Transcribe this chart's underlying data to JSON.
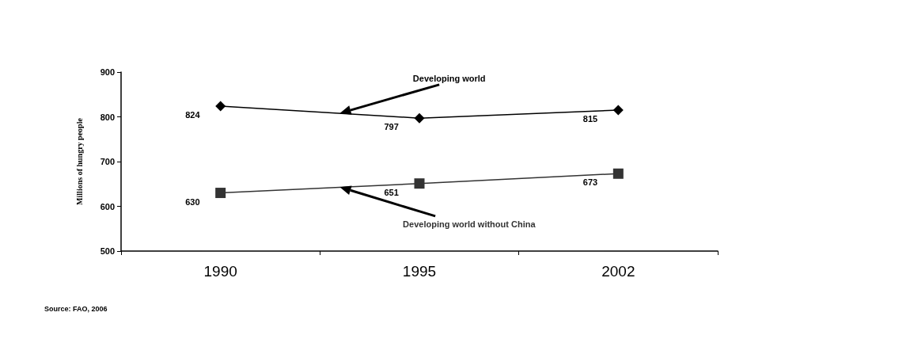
{
  "chart_data": {
    "type": "line",
    "ylabel": "Millions of hungry people",
    "categories": [
      "1990",
      "1995",
      "2002"
    ],
    "ylim": [
      500,
      900
    ],
    "yticks": [
      500,
      600,
      700,
      800,
      900
    ],
    "series": [
      {
        "name": "Developing world",
        "color": "#000000",
        "marker": "diamond",
        "values": [
          824,
          797,
          815
        ]
      },
      {
        "name": "Developing world without China",
        "color": "#333333",
        "marker": "square",
        "values": [
          630,
          651,
          673
        ]
      }
    ],
    "data_labels": true,
    "grid": false,
    "legend": false,
    "annotations": [
      "Source: FAO, 2006"
    ]
  }
}
